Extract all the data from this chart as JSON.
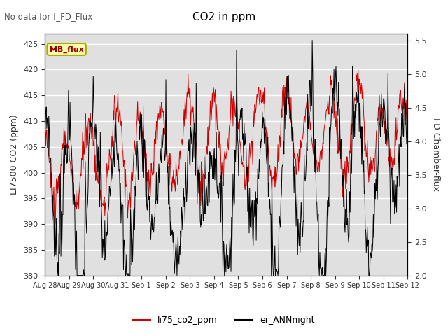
{
  "title": "CO2 in ppm",
  "subtitle": "No data for f_FD_Flux",
  "ylabel_left": "LI7500 CO2 (ppm)",
  "ylabel_right": "FD Chamber-flux",
  "ylim_left": [
    380,
    427
  ],
  "ylim_right": [
    2.0,
    5.6
  ],
  "yticks_left": [
    380,
    385,
    390,
    395,
    400,
    405,
    410,
    415,
    420,
    425
  ],
  "yticks_right": [
    2.0,
    2.5,
    3.0,
    3.5,
    4.0,
    4.5,
    5.0,
    5.5
  ],
  "legend_label1": "li75_co2_ppm",
  "legend_label2": "er_ANNnight",
  "legend_box_label": "MB_flux",
  "bg_color": "#e0e0e0",
  "line1_color": "#cc0000",
  "line2_color": "#000000",
  "n_days": 15,
  "seed": 42,
  "aug_days": [
    28,
    29,
    30,
    31
  ],
  "sep_days": [
    1,
    2,
    3,
    4,
    5,
    6,
    7,
    8,
    9,
    10,
    11,
    12
  ]
}
